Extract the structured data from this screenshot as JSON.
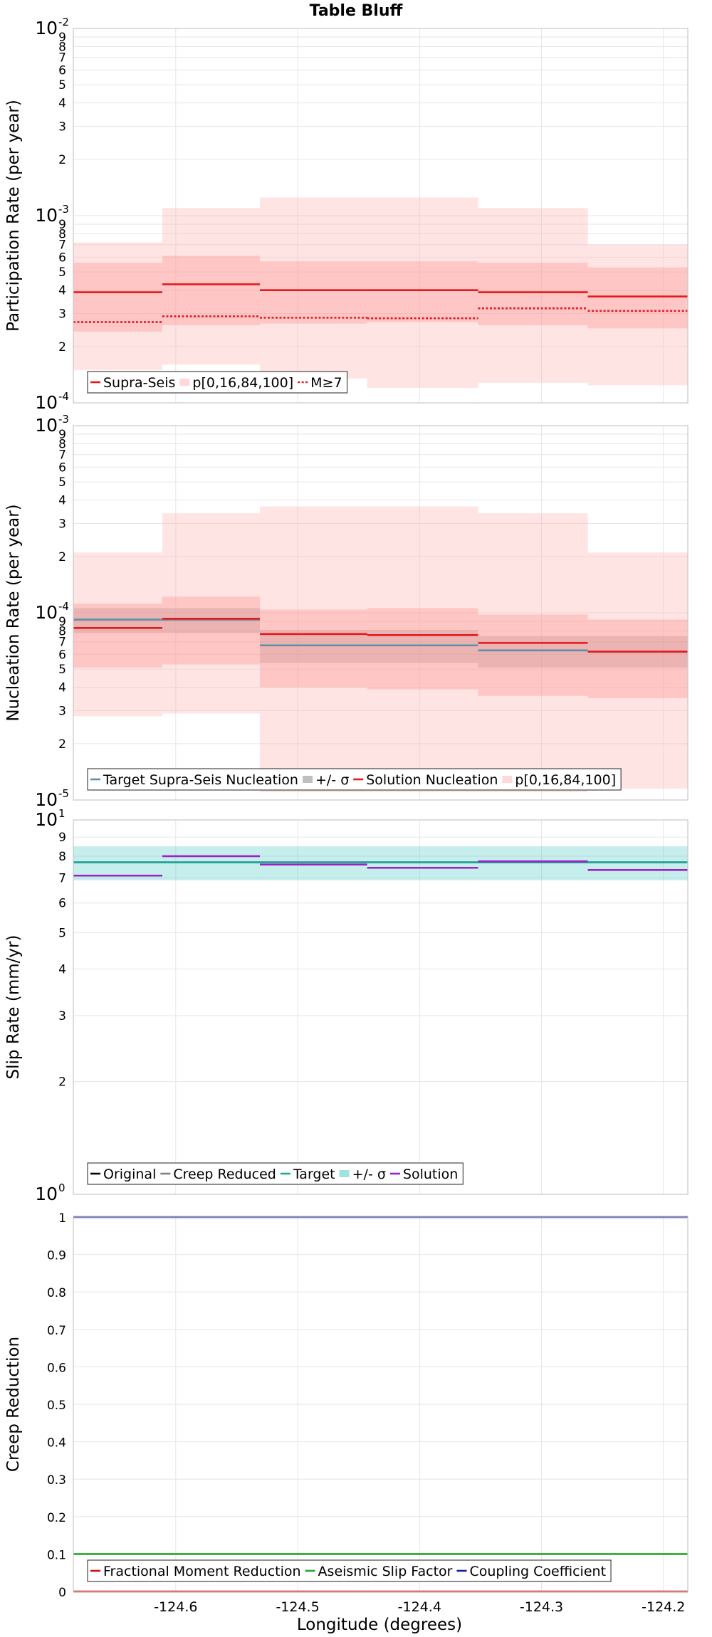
{
  "figure": {
    "title": "Table Bluff",
    "xlabel": "Longitude (degrees)",
    "x_ticks": [
      -124.6,
      -124.5,
      -124.4,
      -124.3,
      -124.2
    ],
    "xlim": [
      -124.684,
      -124.18
    ]
  },
  "chart_data": [
    {
      "type": "line",
      "ylabel": "Participation Rate (per year)",
      "yscale": "log",
      "ylim": [
        0.0001,
        0.01
      ],
      "grid": true,
      "legend_position": "bottom-left",
      "x_edges": [
        -124.684,
        -124.611,
        -124.531,
        -124.443,
        -124.352,
        -124.262,
        -124.18
      ],
      "series": [
        {
          "name": "Supra-Seis",
          "kind": "step",
          "color": "#e41a1c",
          "dash": "solid",
          "values": [
            0.00039,
            0.00043,
            0.0004,
            0.0004,
            0.00039,
            0.00037
          ]
        },
        {
          "name": "p[0,16,84,100]",
          "kind": "band",
          "color": "#ffb3b3",
          "opacity": 0.35,
          "lower": [
            0.00015,
            0.00016,
            0.000135,
            0.00012,
            0.000128,
            0.000124
          ],
          "upper": [
            0.00072,
            0.0011,
            0.00125,
            0.00125,
            0.0011,
            0.0007
          ]
        },
        {
          "name": "",
          "kind": "band",
          "color": "#ff8080",
          "opacity": 0.3,
          "lower": [
            0.00024,
            0.00026,
            0.000265,
            0.00027,
            0.00026,
            0.00025
          ],
          "upper": [
            0.00056,
            0.00061,
            0.00057,
            0.00057,
            0.00056,
            0.00053
          ]
        },
        {
          "name": "M≥7",
          "kind": "step",
          "color": "#e41a1c",
          "dash": "dot",
          "values": [
            0.00027,
            0.00029,
            0.000285,
            0.000283,
            0.00032,
            0.00031
          ]
        }
      ],
      "legend": [
        "Supra-Seis",
        "p[0,16,84,100]",
        "M≥7"
      ]
    },
    {
      "type": "line",
      "ylabel": "Nucleation Rate (per year)",
      "yscale": "log",
      "ylim": [
        1e-05,
        0.001
      ],
      "grid": true,
      "legend_position": "bottom-left",
      "x_edges": [
        -124.684,
        -124.611,
        -124.531,
        -124.443,
        -124.352,
        -124.262,
        -124.18
      ],
      "series": [
        {
          "name": "Target Supra-Seis Nucleation",
          "kind": "step",
          "color": "#5f8fa8",
          "dash": "solid",
          "values": [
            9.2e-05,
            9.2e-05,
            6.7e-05,
            6.7e-05,
            6.3e-05,
            6.2e-05
          ]
        },
        {
          "name": "+/- σ",
          "kind": "band",
          "color": "#808080",
          "opacity": 0.32,
          "lower": [
            7.8e-05,
            7.8e-05,
            5.4e-05,
            5.4e-05,
            5.1e-05,
            5.1e-05
          ],
          "upper": [
            0.000106,
            0.000106,
            8.1e-05,
            8.1e-05,
            7.5e-05,
            7.5e-05
          ]
        },
        {
          "name": "Solution Nucleation",
          "kind": "step",
          "color": "#e41a1c",
          "dash": "solid",
          "values": [
            8.3e-05,
            9.3e-05,
            7.7e-05,
            7.6e-05,
            6.9e-05,
            6.2e-05
          ]
        },
        {
          "name": "p[0,16,84,100]",
          "kind": "band",
          "color": "#ffb3b3",
          "opacity": 0.35,
          "lower": [
            2.8e-05,
            2.9e-05,
            1.1e-05,
            1.1e-05,
            1.1e-05,
            1.15e-05
          ],
          "upper": [
            0.00021,
            0.00034,
            0.00037,
            0.00037,
            0.00034,
            0.00021
          ]
        },
        {
          "name": "",
          "kind": "band",
          "color": "#ff8080",
          "opacity": 0.3,
          "lower": [
            5.1e-05,
            5.3e-05,
            4e-05,
            3.9e-05,
            3.6e-05,
            3.5e-05
          ],
          "upper": [
            0.000112,
            0.000122,
            0.000104,
            0.000106,
            9.8e-05,
            9.2e-05
          ]
        }
      ],
      "legend": [
        "Target Supra-Seis Nucleation",
        "+/- σ",
        "Solution Nucleation",
        "p[0,16,84,100]"
      ]
    },
    {
      "type": "line",
      "ylabel": "Slip Rate (mm/yr)",
      "yscale": "log",
      "ylim": [
        1,
        10
      ],
      "grid": true,
      "legend_position": "bottom-left",
      "x_edges": [
        -124.684,
        -124.611,
        -124.531,
        -124.443,
        -124.352,
        -124.262,
        -124.18
      ],
      "series": [
        {
          "name": "Original",
          "kind": "step",
          "color": "#000000",
          "dash": "solid",
          "values": [
            7.7,
            7.7,
            7.7,
            7.7,
            7.7,
            7.7
          ]
        },
        {
          "name": "Creep Reduced",
          "kind": "step",
          "color": "#808080",
          "dash": "solid",
          "values": [
            7.7,
            7.7,
            7.7,
            7.7,
            7.7,
            7.7
          ]
        },
        {
          "name": "+/- σ",
          "kind": "band",
          "color": "#40c8c0",
          "opacity": 0.3,
          "lower": [
            6.9,
            6.9,
            6.9,
            6.9,
            6.9,
            6.9
          ],
          "upper": [
            8.5,
            8.5,
            8.5,
            8.5,
            8.5,
            8.5
          ]
        },
        {
          "name": "Target",
          "kind": "step",
          "color": "#1fa89a",
          "dash": "solid",
          "values": [
            7.7,
            7.7,
            7.7,
            7.7,
            7.7,
            7.7
          ]
        },
        {
          "name": "Solution",
          "kind": "step",
          "color": "#a020c8",
          "dash": "solid",
          "values": [
            7.1,
            8.0,
            7.6,
            7.45,
            7.75,
            7.35
          ]
        }
      ],
      "legend": [
        "Original",
        "Creep Reduced",
        "Target",
        "+/- σ",
        "Solution"
      ]
    },
    {
      "type": "line",
      "ylabel": "Creep Reduction",
      "yscale": "linear",
      "ylim": [
        0,
        1
      ],
      "y_ticks": [
        "0",
        "0.1",
        "0.2",
        "0.3",
        "0.4",
        "0.5",
        "0.6",
        "0.7",
        "0.8",
        "0.9",
        "1"
      ],
      "grid": true,
      "legend_position": "bottom-left",
      "x_edges": [
        -124.684,
        -124.611,
        -124.531,
        -124.443,
        -124.352,
        -124.262,
        -124.18
      ],
      "series": [
        {
          "name": "Fractional Moment Reduction",
          "kind": "step",
          "color": "#cc1111",
          "dash": "solid",
          "values": [
            0,
            0,
            0,
            0,
            0,
            0
          ]
        },
        {
          "name": "Aseismic Slip Factor",
          "kind": "step",
          "color": "#22aa22",
          "dash": "solid",
          "values": [
            0.1,
            0.1,
            0.1,
            0.1,
            0.1,
            0.1
          ]
        },
        {
          "name": "Coupling Coefficient",
          "kind": "step",
          "color": "#1a1aa0",
          "dash": "solid",
          "values": [
            1,
            1,
            1,
            1,
            1,
            1
          ]
        }
      ],
      "legend": [
        "Fractional Moment Reduction",
        "Aseismic Slip Factor",
        "Coupling Coefficient"
      ]
    }
  ]
}
